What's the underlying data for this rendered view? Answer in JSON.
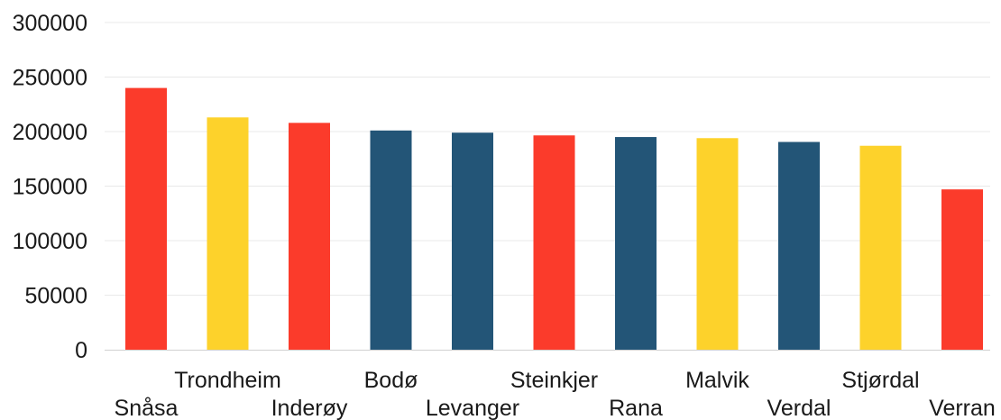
{
  "chart_data": {
    "type": "bar",
    "categories": [
      "Snåsa",
      "Trondheim",
      "Inderøy",
      "Bodø",
      "Levanger",
      "Steinkjer",
      "Rana",
      "Malvik",
      "Verdal",
      "Stjørdal",
      "Verran"
    ],
    "values": [
      240000,
      213000,
      208000,
      201000,
      199000,
      196500,
      195000,
      194000,
      190500,
      187000,
      147000
    ],
    "colors": [
      "#fb3b2b",
      "#fdd22b",
      "#fb3b2b",
      "#235577",
      "#235577",
      "#fb3b2b",
      "#235577",
      "#fdd22b",
      "#235577",
      "#fdd22b",
      "#fb3b2b"
    ],
    "ylim": [
      0,
      300000
    ],
    "yticks": [
      0,
      50000,
      100000,
      150000,
      200000,
      250000,
      300000
    ],
    "ytick_labels": [
      "0",
      "50000",
      "100000",
      "150000",
      "200000",
      "250000",
      "300000"
    ],
    "grid": true,
    "title": "",
    "xlabel": "",
    "ylabel": ""
  }
}
